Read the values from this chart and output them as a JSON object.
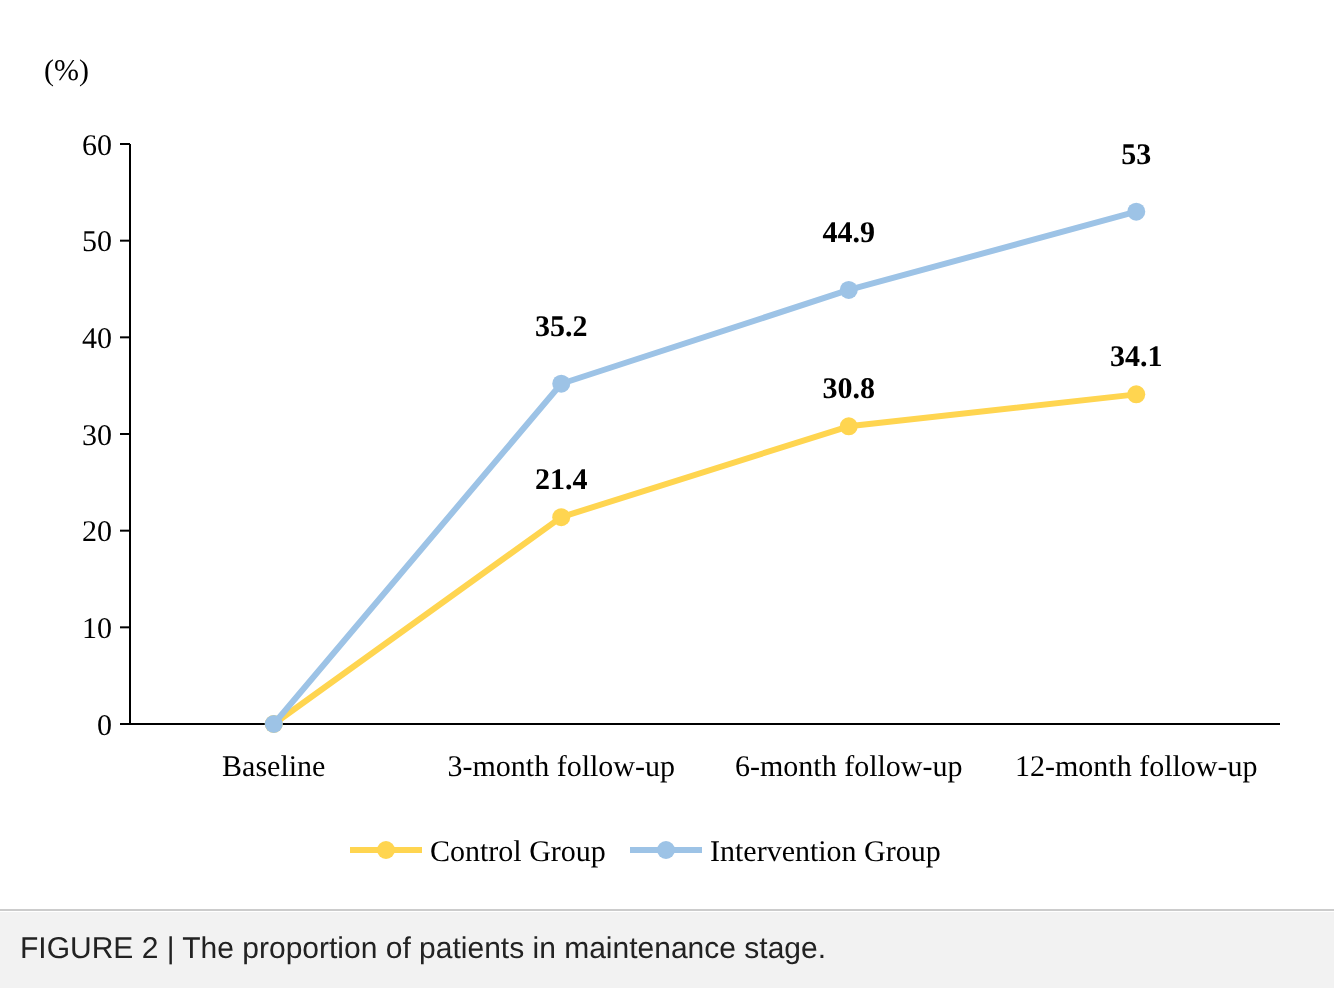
{
  "chart_data": {
    "type": "line",
    "ylabel": "(%)",
    "categories": [
      "Baseline",
      "3-month follow-up",
      "6-month follow-up",
      "12-month follow-up"
    ],
    "series": [
      {
        "name": "Control Group",
        "color": "#ffd550",
        "values": [
          0,
          21.4,
          30.8,
          34.1
        ],
        "value_labels": [
          null,
          "21.4",
          "30.8",
          "34.1"
        ]
      },
      {
        "name": "Intervention Group",
        "color": "#9dc3e6",
        "values": [
          0,
          35.2,
          44.9,
          53
        ],
        "value_labels": [
          null,
          "35.2",
          "44.9",
          "53"
        ]
      }
    ],
    "ylim": [
      0,
      60
    ],
    "yticks": [
      0,
      10,
      20,
      30,
      40,
      50,
      60
    ],
    "grid": false,
    "legend": "bottom",
    "marker": "circle",
    "line_style": "solid",
    "annotations": [
      "FIGURE 2 | The proportion of patients in maintenance stage."
    ]
  }
}
